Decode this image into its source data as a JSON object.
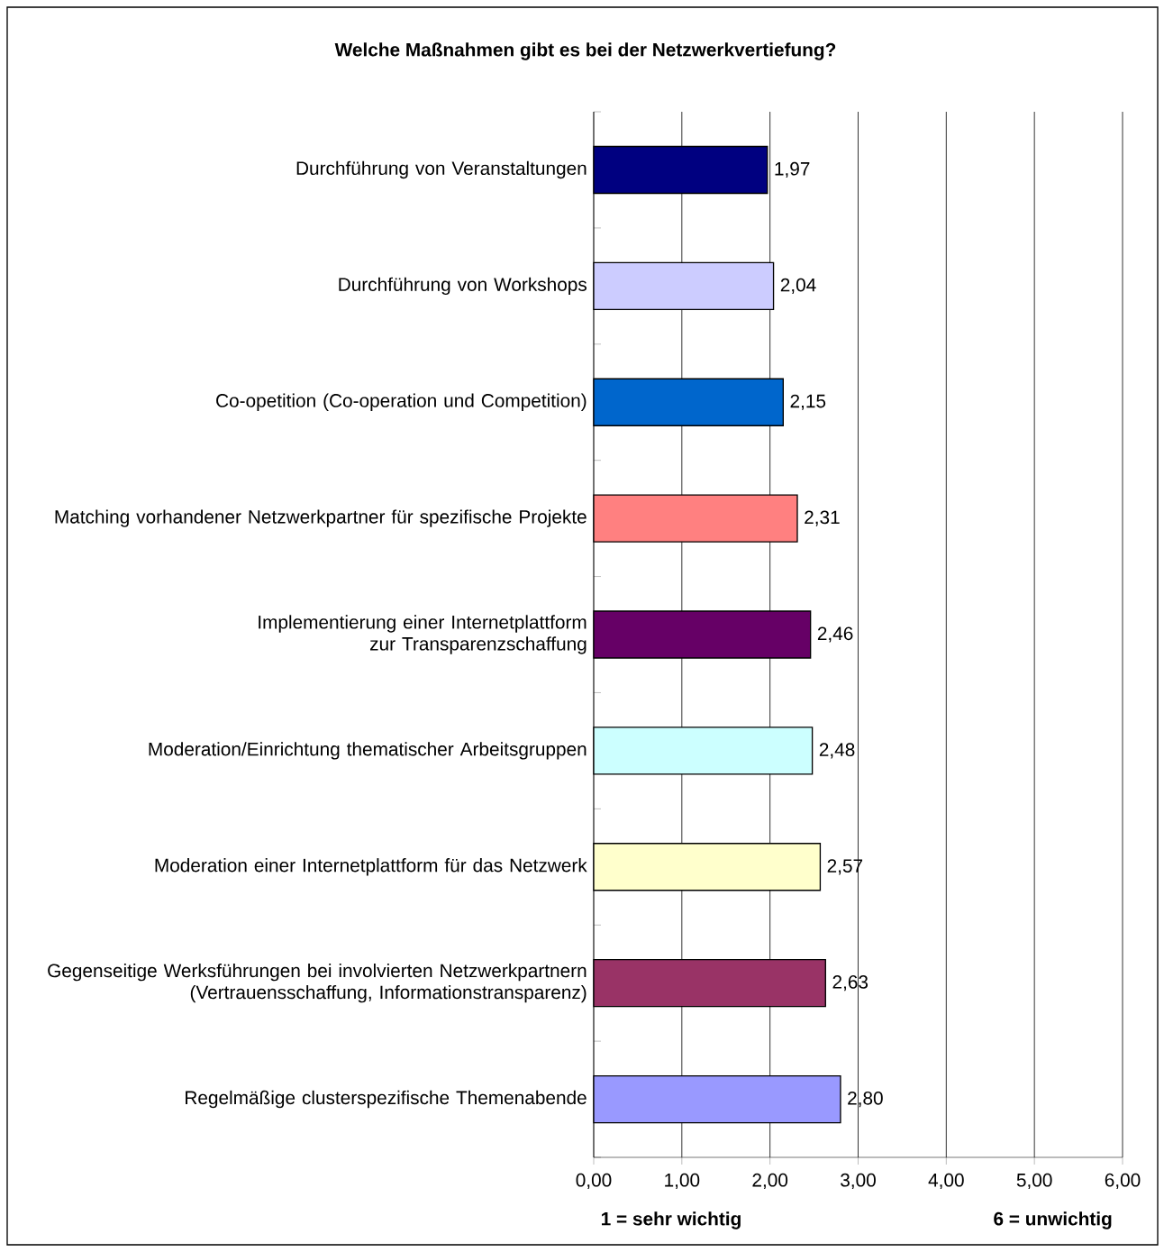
{
  "chart_data": {
    "type": "bar",
    "orientation": "horizontal",
    "title": "Welche Maßnahmen gibt es bei der Netzwerkvertiefung?",
    "categories": [
      "Durchführung von Veranstaltungen",
      "Durchführung von Workshops",
      "Co-opetition (Co-operation und Competition)",
      "Matching vorhandener Netzwerkpartner für spezifische Projekte",
      "Implementierung einer Internetplattform zur Transparenzschaffung",
      "Moderation/Einrichtung thematischer Arbeitsgruppen",
      "Moderation einer Internetplattform für das Netzwerk",
      "Gegenseitige Werksführungen bei involvierten Netzwerkpartnern (Vertrauensschaffung, Informationstransparenz)",
      "Regelmäßige clusterspezifische Themenabende"
    ],
    "values": [
      1.97,
      2.04,
      2.15,
      2.31,
      2.46,
      2.48,
      2.57,
      2.63,
      2.8
    ],
    "value_labels": [
      "1,97",
      "2,04",
      "2,15",
      "2,31",
      "2,46",
      "2,48",
      "2,57",
      "2,63",
      "2,80"
    ],
    "colors": [
      "#000080",
      "#ccccff",
      "#0066cc",
      "#ff8080",
      "#660066",
      "#ccffff",
      "#ffffcc",
      "#993366",
      "#9999ff"
    ],
    "xlim": [
      0,
      6
    ],
    "xticks": [
      {
        "value": 0,
        "label": "0,00"
      },
      {
        "value": 1,
        "label": "1,00"
      },
      {
        "value": 2,
        "label": "2,00"
      },
      {
        "value": 3,
        "label": "3,00"
      },
      {
        "value": 4,
        "label": "4,00"
      },
      {
        "value": 5,
        "label": "5,00"
      },
      {
        "value": 6,
        "label": "6,00"
      }
    ],
    "grid": "x",
    "annotations": [
      "1 = sehr wichtig",
      "6 = unwichtig"
    ]
  }
}
